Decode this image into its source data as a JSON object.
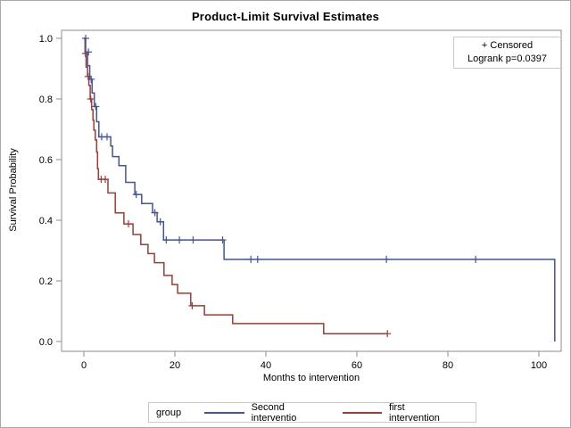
{
  "title": "Product-Limit Survival Estimates",
  "inset": {
    "censored": "+ Censored",
    "logrank": "Logrank p=0.0397"
  },
  "x_axis": {
    "label": "Months to intervention",
    "ticks": [
      {
        "value": 0,
        "label": "0"
      },
      {
        "value": 20,
        "label": "20"
      },
      {
        "value": 40,
        "label": "40"
      },
      {
        "value": 60,
        "label": "60"
      },
      {
        "value": 80,
        "label": "80"
      },
      {
        "value": 100,
        "label": "100"
      }
    ]
  },
  "y_axis": {
    "label": "Survival Probability",
    "ticks": [
      {
        "value": 1.0,
        "label": "1.0"
      },
      {
        "value": 0.8,
        "label": "0.8"
      },
      {
        "value": 0.6,
        "label": "0.6"
      },
      {
        "value": 0.4,
        "label": "0.4"
      },
      {
        "value": 0.2,
        "label": "0.2"
      },
      {
        "value": 0.0,
        "label": "0.0"
      }
    ]
  },
  "legend": {
    "title": "group"
  },
  "chart_data": {
    "type": "line",
    "subtype": "kaplan-meier-step",
    "title": "Product-Limit Survival Estimates",
    "xlabel": "Months to intervention",
    "ylabel": "Survival Probability",
    "xlim": [
      0,
      105
    ],
    "ylim": [
      0.0,
      1.0
    ],
    "grid": false,
    "legend_position": "bottom",
    "annotations": [
      "+ Censored",
      "Logrank p=0.0397"
    ],
    "series": [
      {
        "name": "Second interventio",
        "color": "#42549B",
        "step_points": [
          [
            0,
            1.0
          ],
          [
            0.4,
            0.955
          ],
          [
            0.8,
            0.91
          ],
          [
            1.3,
            0.865
          ],
          [
            1.8,
            0.82
          ],
          [
            2.3,
            0.775
          ],
          [
            2.8,
            0.725
          ],
          [
            3.3,
            0.675
          ],
          [
            5.9,
            0.645
          ],
          [
            6.3,
            0.61
          ],
          [
            7.7,
            0.58
          ],
          [
            9.2,
            0.525
          ],
          [
            11.2,
            0.485
          ],
          [
            12.7,
            0.455
          ],
          [
            15.1,
            0.425
          ],
          [
            16.1,
            0.395
          ],
          [
            17.5,
            0.335
          ],
          [
            30.8,
            0.271
          ],
          [
            103.5,
            0.0
          ]
        ],
        "censored": [
          [
            0.4,
            1.0
          ],
          [
            1.0,
            0.955
          ],
          [
            1.6,
            0.865
          ],
          [
            2.6,
            0.775
          ],
          [
            3.9,
            0.675
          ],
          [
            5.1,
            0.675
          ],
          [
            11.5,
            0.485
          ],
          [
            15.6,
            0.425
          ],
          [
            16.8,
            0.395
          ],
          [
            18.1,
            0.335
          ],
          [
            21.0,
            0.335
          ],
          [
            24.0,
            0.335
          ],
          [
            30.5,
            0.335
          ],
          [
            36.7,
            0.271
          ],
          [
            38.2,
            0.271
          ],
          [
            66.5,
            0.271
          ],
          [
            86.1,
            0.271
          ]
        ]
      },
      {
        "name": "first intervention",
        "color": "#A23B32",
        "step_points": [
          [
            0,
            1.0
          ],
          [
            0.25,
            0.95
          ],
          [
            0.5,
            0.905
          ],
          [
            0.8,
            0.874
          ],
          [
            1.1,
            0.845
          ],
          [
            1.4,
            0.8
          ],
          [
            1.7,
            0.765
          ],
          [
            2.0,
            0.73
          ],
          [
            2.2,
            0.697
          ],
          [
            2.5,
            0.665
          ],
          [
            2.8,
            0.625
          ],
          [
            3.0,
            0.57
          ],
          [
            3.2,
            0.535
          ],
          [
            5.3,
            0.49
          ],
          [
            6.9,
            0.424
          ],
          [
            8.8,
            0.388
          ],
          [
            10.8,
            0.353
          ],
          [
            12.5,
            0.32
          ],
          [
            14.1,
            0.29
          ],
          [
            15.5,
            0.26
          ],
          [
            17.6,
            0.218
          ],
          [
            19.4,
            0.188
          ],
          [
            20.6,
            0.159
          ],
          [
            23.5,
            0.118
          ],
          [
            26.5,
            0.088
          ],
          [
            32.7,
            0.059
          ],
          [
            52.7,
            0.026
          ],
          [
            66.7,
            0.026
          ]
        ],
        "censored": [
          [
            0.35,
            0.95
          ],
          [
            0.95,
            0.874
          ],
          [
            1.5,
            0.8
          ],
          [
            3.8,
            0.535
          ],
          [
            4.7,
            0.535
          ],
          [
            9.8,
            0.388
          ],
          [
            23.8,
            0.118
          ],
          [
            66.7,
            0.026
          ]
        ]
      }
    ]
  }
}
